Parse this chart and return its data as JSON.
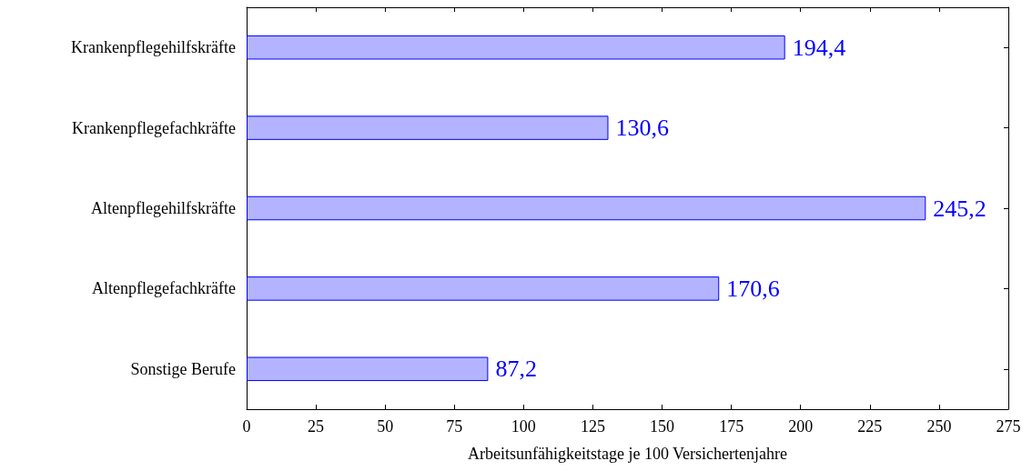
{
  "chart_data": {
    "type": "bar",
    "orientation": "horizontal",
    "xlabel": "Arbeitsunfähigkeitstage je 100 Versichertenjahre",
    "categories": [
      "Krankenpflegehilfskräfte",
      "Krankenpflegefachkräfte",
      "Altenpflegehilfskräfte",
      "Altenpflegefachkräfte",
      "Sonstige Berufe"
    ],
    "values": [
      194.4,
      130.6,
      245.2,
      170.6,
      87.2
    ],
    "value_labels": [
      "194,4",
      "130,6",
      "245,2",
      "170,6",
      "87,2"
    ],
    "color": "#b3b3ff",
    "xlim": [
      0,
      275
    ],
    "xticks": [
      0,
      25,
      50,
      75,
      100,
      125,
      150,
      175,
      200,
      225,
      250,
      275
    ],
    "grid": false
  }
}
